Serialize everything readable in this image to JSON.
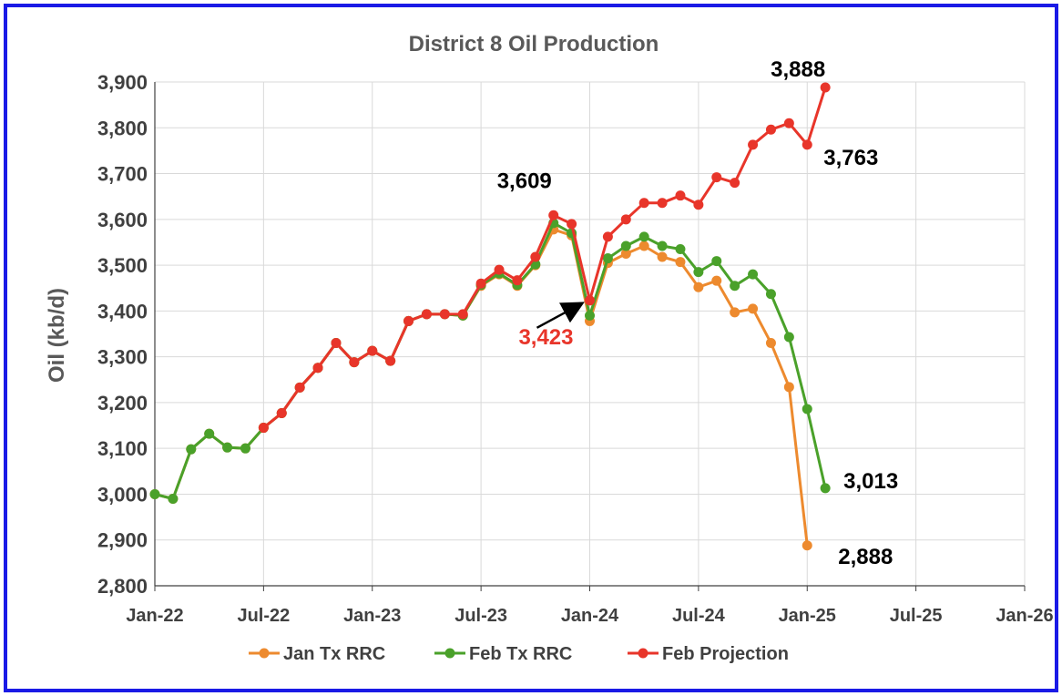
{
  "colors": {
    "jan": "#ed8a2e",
    "feb": "#4aa12a",
    "proj": "#e8352a",
    "frame": "#1a1ae6",
    "grid": "#d9d9d9",
    "arrow": "#000000"
  },
  "chart_data": {
    "type": "line",
    "title": "District 8 Oil Production",
    "xlabel": "",
    "ylabel": "Oil (kb/d)",
    "xlim": [
      "2022-01",
      "2026-01"
    ],
    "ylim": [
      2800,
      3900
    ],
    "y_ticks": [
      "2,800",
      "2,900",
      "3,000",
      "3,100",
      "3,200",
      "3,300",
      "3,400",
      "3,500",
      "3,600",
      "3,700",
      "3,800",
      "3,900"
    ],
    "x_ticks": [
      "Jan-22",
      "Jul-22",
      "Jan-23",
      "Jul-23",
      "Jan-24",
      "Jul-24",
      "Jan-25",
      "Jul-25",
      "Jan-26"
    ],
    "grid": true,
    "legend": "bottom",
    "series": [
      {
        "name": "Jan Tx RRC",
        "color_key": "jan",
        "x": [
          "2022-01",
          "2022-02",
          "2022-03",
          "2022-04",
          "2022-05",
          "2022-06",
          "2022-07",
          "2022-08",
          "2022-09",
          "2022-10",
          "2022-11",
          "2022-12",
          "2023-01",
          "2023-02",
          "2023-03",
          "2023-04",
          "2023-05",
          "2023-06",
          "2023-07",
          "2023-08",
          "2023-09",
          "2023-10",
          "2023-11",
          "2023-12",
          "2024-01",
          "2024-02",
          "2024-03",
          "2024-04",
          "2024-05",
          "2024-06",
          "2024-07",
          "2024-08",
          "2024-09",
          "2024-10",
          "2024-11",
          "2024-12",
          "2025-01"
        ],
        "values": [
          3000,
          2990,
          3098,
          3132,
          3102,
          3100,
          3145,
          3177,
          3233,
          3276,
          3330,
          3288,
          3313,
          3291,
          3378,
          3393,
          3393,
          3390,
          3455,
          3480,
          3455,
          3500,
          3578,
          3565,
          3378,
          3505,
          3525,
          3542,
          3518,
          3507,
          3452,
          3466,
          3397,
          3405,
          3330,
          3234,
          2888
        ]
      },
      {
        "name": "Feb Tx RRC",
        "color_key": "feb",
        "x": [
          "2022-01",
          "2022-02",
          "2022-03",
          "2022-04",
          "2022-05",
          "2022-06",
          "2022-07",
          "2022-08",
          "2022-09",
          "2022-10",
          "2022-11",
          "2022-12",
          "2023-01",
          "2023-02",
          "2023-03",
          "2023-04",
          "2023-05",
          "2023-06",
          "2023-07",
          "2023-08",
          "2023-09",
          "2023-10",
          "2023-11",
          "2023-12",
          "2024-01",
          "2024-02",
          "2024-03",
          "2024-04",
          "2024-05",
          "2024-06",
          "2024-07",
          "2024-08",
          "2024-09",
          "2024-10",
          "2024-11",
          "2024-12",
          "2025-01",
          "2025-02"
        ],
        "values": [
          3000,
          2990,
          3098,
          3132,
          3102,
          3100,
          3145,
          3177,
          3233,
          3276,
          3330,
          3288,
          3313,
          3291,
          3378,
          3393,
          3393,
          3390,
          3457,
          3482,
          3457,
          3502,
          3592,
          3570,
          3390,
          3515,
          3542,
          3562,
          3542,
          3535,
          3485,
          3509,
          3455,
          3480,
          3437,
          3343,
          3186,
          3013
        ]
      },
      {
        "name": "Feb Projection",
        "color_key": "proj",
        "x": [
          "2022-07",
          "2022-08",
          "2022-09",
          "2022-10",
          "2022-11",
          "2022-12",
          "2023-01",
          "2023-02",
          "2023-03",
          "2023-04",
          "2023-05",
          "2023-06",
          "2023-07",
          "2023-08",
          "2023-09",
          "2023-10",
          "2023-11",
          "2023-12",
          "2024-01",
          "2024-02",
          "2024-03",
          "2024-04",
          "2024-05",
          "2024-06",
          "2024-07",
          "2024-08",
          "2024-09",
          "2024-10",
          "2024-11",
          "2024-12",
          "2025-01",
          "2025-02"
        ],
        "values": [
          3145,
          3177,
          3233,
          3276,
          3330,
          3288,
          3313,
          3291,
          3378,
          3393,
          3393,
          3393,
          3460,
          3490,
          3467,
          3518,
          3609,
          3590,
          3423,
          3562,
          3600,
          3636,
          3636,
          3652,
          3632,
          3692,
          3680,
          3763,
          3796,
          3810,
          3763,
          3888
        ]
      }
    ],
    "annotations": [
      {
        "text": "3,888",
        "x": "2025-02",
        "y": 3888,
        "color_key": "arrow"
      },
      {
        "text": "3,763",
        "x": "2025-01",
        "y": 3763,
        "color_key": "arrow"
      },
      {
        "text": "3,609",
        "x": "2023-11",
        "y": 3609,
        "color_key": "arrow"
      },
      {
        "text": "3,423",
        "x": "2024-01",
        "y": 3423,
        "color_key": "proj"
      },
      {
        "text": "3,013",
        "x": "2025-02",
        "y": 3013,
        "color_key": "arrow"
      },
      {
        "text": "2,888",
        "x": "2025-01",
        "y": 2888,
        "color_key": "arrow"
      }
    ]
  }
}
